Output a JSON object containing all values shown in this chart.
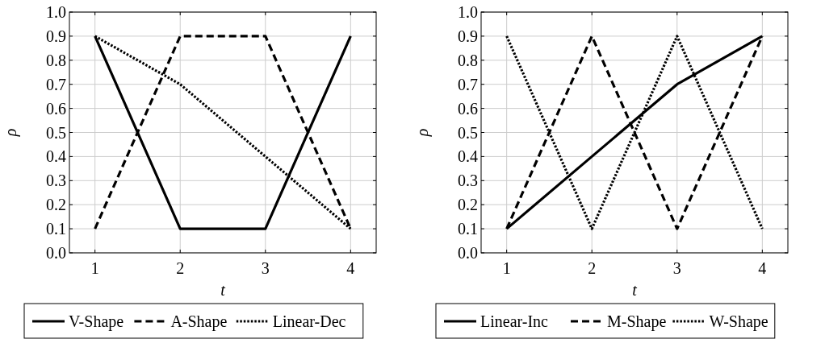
{
  "chart_data": [
    {
      "type": "line",
      "xlabel": "t",
      "ylabel": "ρ",
      "x": [
        1,
        2,
        3,
        4
      ],
      "xlim": [
        0.7,
        4.3
      ],
      "ylim": [
        0,
        1
      ],
      "xticks": [
        1,
        2,
        3,
        4
      ],
      "yticks": [
        {
          "value": 0,
          "label": "0.0"
        },
        {
          "value": 0.1,
          "label": "0.1"
        },
        {
          "value": 0.2,
          "label": "0.2"
        },
        {
          "value": 0.3,
          "label": "0.3"
        },
        {
          "value": 0.4,
          "label": "0.4"
        },
        {
          "value": 0.5,
          "label": "0.5"
        },
        {
          "value": 0.6,
          "label": "0.6"
        },
        {
          "value": 0.7,
          "label": "0.7"
        },
        {
          "value": 0.8,
          "label": "0.8"
        },
        {
          "value": 0.9,
          "label": "0.9"
        },
        {
          "value": 1,
          "label": "1.0"
        }
      ],
      "grid": true,
      "legend": "bottom",
      "marker": "none",
      "series": [
        {
          "name": "V-Shape",
          "color": "#000000",
          "line_style": "solid",
          "values": [
            0.9,
            0.1,
            0.1,
            0.9
          ]
        },
        {
          "name": "A-Shape",
          "color": "#000000",
          "line_style": "dashed",
          "values": [
            0.1,
            0.9,
            0.9,
            0.1
          ]
        },
        {
          "name": "Linear-Dec",
          "color": "#000000",
          "line_style": "dotted",
          "values": [
            0.9,
            0.7,
            0.4,
            0.1
          ]
        }
      ]
    },
    {
      "type": "line",
      "xlabel": "t",
      "ylabel": "ρ",
      "x": [
        1,
        2,
        3,
        4
      ],
      "xlim": [
        0.7,
        4.3
      ],
      "ylim": [
        0,
        1
      ],
      "xticks": [
        1,
        2,
        3,
        4
      ],
      "yticks": [
        {
          "value": 0,
          "label": "0.0"
        },
        {
          "value": 0.1,
          "label": "0.1"
        },
        {
          "value": 0.2,
          "label": "0.2"
        },
        {
          "value": 0.3,
          "label": "0.3"
        },
        {
          "value": 0.4,
          "label": "0.4"
        },
        {
          "value": 0.5,
          "label": "0.5"
        },
        {
          "value": 0.6,
          "label": "0.6"
        },
        {
          "value": 0.7,
          "label": "0.7"
        },
        {
          "value": 0.8,
          "label": "0.8"
        },
        {
          "value": 0.9,
          "label": "0.9"
        },
        {
          "value": 1,
          "label": "1.0"
        }
      ],
      "grid": true,
      "legend": "bottom",
      "marker": "none",
      "series": [
        {
          "name": "Linear-Inc",
          "color": "#000000",
          "line_style": "solid",
          "values": [
            0.1,
            0.4,
            0.7,
            0.9
          ]
        },
        {
          "name": "M-Shape",
          "color": "#000000",
          "line_style": "dashed",
          "values": [
            0.1,
            0.9,
            0.1,
            0.9
          ]
        },
        {
          "name": "W-Shape",
          "color": "#000000",
          "line_style": "dotted",
          "values": [
            0.9,
            0.1,
            0.9,
            0.1
          ]
        }
      ]
    }
  ]
}
